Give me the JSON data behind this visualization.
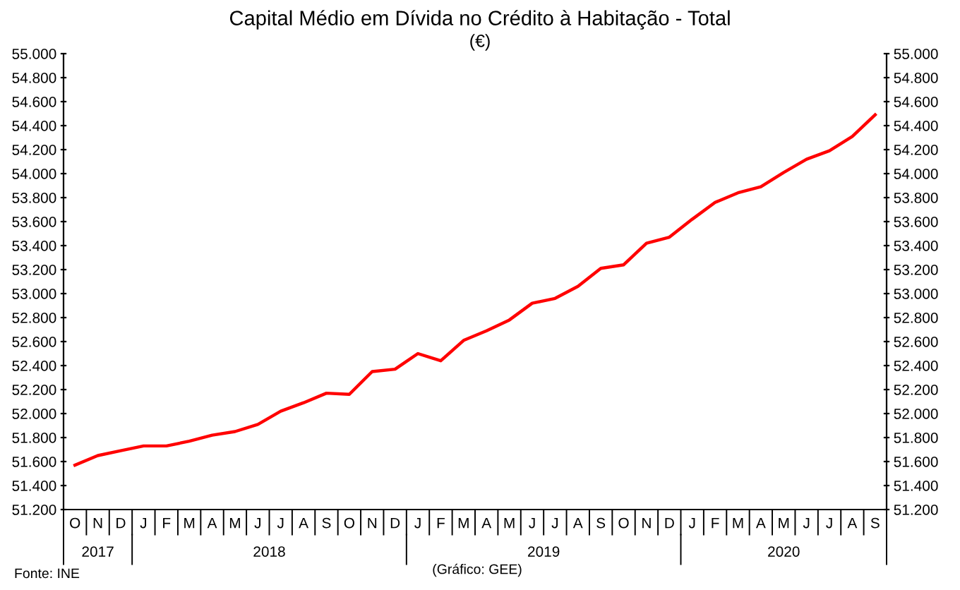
{
  "chart_data": {
    "type": "line",
    "title": "Capital Médio em Dívida no Crédito à Habitação - Total",
    "subtitle": "(€)",
    "categories": [
      "O",
      "N",
      "D",
      "J",
      "F",
      "M",
      "A",
      "M",
      "J",
      "J",
      "A",
      "S",
      "O",
      "N",
      "D",
      "J",
      "F",
      "M",
      "A",
      "M",
      "J",
      "J",
      "A",
      "S",
      "O",
      "N",
      "D",
      "J",
      "F",
      "M",
      "A",
      "M",
      "J",
      "J",
      "A",
      "S"
    ],
    "series": [
      {
        "color": "#ff0000",
        "values": [
          51570,
          51650,
          51690,
          51730,
          51730,
          51770,
          51820,
          51850,
          51910,
          52020,
          52090,
          52170,
          52160,
          52350,
          52370,
          52500,
          52440,
          52610,
          52690,
          52780,
          52920,
          52960,
          53060,
          53210,
          53240,
          53420,
          53470,
          53620,
          53760,
          53840,
          53890,
          54010,
          54120,
          54190,
          54310,
          54490
        ]
      }
    ],
    "ylim": [
      51200,
      55000
    ],
    "yticks": [
      {
        "value": 51200,
        "label": "51.200"
      },
      {
        "value": 51400,
        "label": "51.400"
      },
      {
        "value": 51600,
        "label": "51.600"
      },
      {
        "value": 51800,
        "label": "51.800"
      },
      {
        "value": 52000,
        "label": "52.000"
      },
      {
        "value": 52200,
        "label": "52.200"
      },
      {
        "value": 52400,
        "label": "52.400"
      },
      {
        "value": 52600,
        "label": "52.600"
      },
      {
        "value": 52800,
        "label": "52.800"
      },
      {
        "value": 53000,
        "label": "53.000"
      },
      {
        "value": 53200,
        "label": "53.200"
      },
      {
        "value": 53400,
        "label": "53.400"
      },
      {
        "value": 53600,
        "label": "53.600"
      },
      {
        "value": 53800,
        "label": "53.800"
      },
      {
        "value": 54000,
        "label": "54.000"
      },
      {
        "value": 54200,
        "label": "54.200"
      },
      {
        "value": 54400,
        "label": "54.400"
      },
      {
        "value": 54600,
        "label": "54.600"
      },
      {
        "value": 54800,
        "label": "54.800"
      },
      {
        "value": 55000,
        "label": "55.000"
      }
    ],
    "y2lim": [
      51200,
      55000
    ],
    "y2ticks": [
      {
        "value": 51200,
        "label": "51.200"
      },
      {
        "value": 51400,
        "label": "51.400"
      },
      {
        "value": 51600,
        "label": "51.600"
      },
      {
        "value": 51800,
        "label": "51.800"
      },
      {
        "value": 52000,
        "label": "52.000"
      },
      {
        "value": 52200,
        "label": "52.200"
      },
      {
        "value": 52400,
        "label": "52.400"
      },
      {
        "value": 52600,
        "label": "52.600"
      },
      {
        "value": 52800,
        "label": "52.800"
      },
      {
        "value": 53000,
        "label": "53.000"
      },
      {
        "value": 53200,
        "label": "53.200"
      },
      {
        "value": 53400,
        "label": "53.400"
      },
      {
        "value": 53600,
        "label": "53.600"
      },
      {
        "value": 53800,
        "label": "53.800"
      },
      {
        "value": 54000,
        "label": "54.000"
      },
      {
        "value": 54200,
        "label": "54.200"
      },
      {
        "value": 54400,
        "label": "54.400"
      },
      {
        "value": 54600,
        "label": "54.600"
      },
      {
        "value": 54800,
        "label": "54.800"
      },
      {
        "value": 55000,
        "label": "55.000"
      }
    ],
    "grid": false,
    "legend": false,
    "marker": "none",
    "line_style": "solid",
    "annotations": [
      "2017",
      "2018",
      "2019",
      "2020",
      "Fonte: INE",
      "(Gráfico: GEE)"
    ]
  }
}
